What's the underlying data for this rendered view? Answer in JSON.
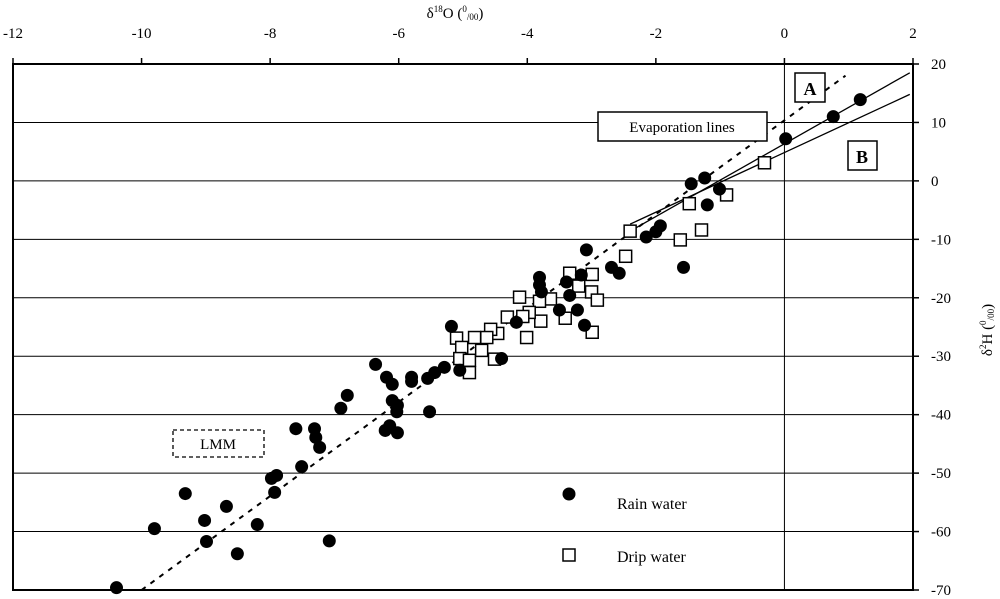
{
  "chart_data": {
    "type": "scatter",
    "title": "",
    "xlabel": "δ18O (‰)",
    "xlabel_parts": {
      "delta": "δ",
      "isotope": "18",
      "element": "O (",
      "permil_num": "0",
      "permil_den": "/00",
      "close": ")"
    },
    "ylabel": "δ2H (‰)",
    "ylabel_parts": {
      "delta": "δ",
      "isotope": "2",
      "element": "H (",
      "permil_num": "0",
      "permil_den": "/00",
      "close": ")"
    },
    "xlim": [
      -12,
      2
    ],
    "ylim": [
      -70,
      20
    ],
    "xticks": [
      -12,
      -10,
      -8,
      -6,
      -4,
      -2,
      0,
      2
    ],
    "yticks": [
      20,
      10,
      0,
      -10,
      -20,
      -30,
      -40,
      -50,
      -60,
      -70
    ],
    "x_axis_position": "top",
    "y_axis_position": "right",
    "grid": {
      "horizontal": true,
      "vertical_at": [
        0
      ]
    },
    "legend": {
      "placement": "bottom-right",
      "entries": [
        {
          "label": "Rain water",
          "marker": "filled-circle"
        },
        {
          "label": "Drip water",
          "marker": "open-square"
        }
      ]
    },
    "annotations": {
      "lmm": "LMM",
      "evaporation": "Evaporation lines",
      "line_a": "A",
      "line_b": "B"
    },
    "lines": [
      {
        "name": "LMM",
        "style": "dashed",
        "x": [
          -10.0,
          0.95
        ],
        "y": [
          -70,
          18
        ]
      },
      {
        "name": "Evaporation line A",
        "style": "solid",
        "x": [
          -2.4,
          1.95
        ],
        "y": [
          -8.6,
          18.5
        ]
      },
      {
        "name": "Evaporation line B",
        "style": "solid",
        "x": [
          -2.4,
          1.95
        ],
        "y": [
          -7.4,
          14.8
        ]
      }
    ],
    "series": [
      {
        "name": "Rain water",
        "points": [
          [
            -10.39,
            -69.6
          ],
          [
            -9.8,
            -59.5
          ],
          [
            -9.32,
            -53.5
          ],
          [
            -9.02,
            -58.1
          ],
          [
            -8.99,
            -61.7
          ],
          [
            -8.68,
            -55.7
          ],
          [
            -8.51,
            -63.8
          ],
          [
            -8.2,
            -58.8
          ],
          [
            -7.98,
            -50.9
          ],
          [
            -7.93,
            -53.3
          ],
          [
            -7.9,
            -50.4
          ],
          [
            -7.6,
            -42.4
          ],
          [
            -7.51,
            -48.9
          ],
          [
            -7.31,
            -42.4
          ],
          [
            -7.29,
            -43.9
          ],
          [
            -7.23,
            -45.6
          ],
          [
            -7.08,
            -61.6
          ],
          [
            -6.9,
            -38.9
          ],
          [
            -6.8,
            -36.7
          ],
          [
            -6.36,
            -31.4
          ],
          [
            -6.19,
            -33.6
          ],
          [
            -6.21,
            -42.7
          ],
          [
            -6.14,
            -41.9
          ],
          [
            -6.1,
            -34.8
          ],
          [
            -6.1,
            -37.6
          ],
          [
            -6.03,
            -39.5
          ],
          [
            -6.02,
            -43.1
          ],
          [
            -6.02,
            -38.4
          ],
          [
            -5.8,
            -33.6
          ],
          [
            -5.8,
            -34.3
          ],
          [
            -5.55,
            -33.8
          ],
          [
            -5.52,
            -39.5
          ],
          [
            -5.44,
            -32.8
          ],
          [
            -5.29,
            -31.9
          ],
          [
            -5.18,
            -24.9
          ],
          [
            -5.05,
            -32.4
          ],
          [
            -4.4,
            -30.4
          ],
          [
            -4.17,
            -24.2
          ],
          [
            -3.81,
            -16.5
          ],
          [
            -3.81,
            -17.8
          ],
          [
            -3.78,
            -19.0
          ],
          [
            -3.08,
            -11.8
          ],
          [
            -2.57,
            -15.8
          ],
          [
            -2.69,
            -14.8
          ],
          [
            -3.39,
            -17.3
          ],
          [
            -3.34,
            -19.6
          ],
          [
            -3.5,
            -22.1
          ],
          [
            -3.22,
            -22.1
          ],
          [
            -3.11,
            -24.7
          ],
          [
            -3.16,
            -16.1
          ],
          [
            -2.15,
            -9.6
          ],
          [
            -2.0,
            -8.7
          ],
          [
            -1.93,
            -7.7
          ],
          [
            -1.45,
            -0.5
          ],
          [
            -1.24,
            0.5
          ],
          [
            -1.01,
            -1.4
          ],
          [
            -1.2,
            -4.1
          ],
          [
            -1.57,
            -14.8
          ],
          [
            0.02,
            7.2
          ],
          [
            0.76,
            11.0
          ],
          [
            1.18,
            13.9
          ]
        ]
      },
      {
        "name": "Drip water",
        "points": [
          [
            -0.31,
            3.1
          ],
          [
            -0.9,
            -2.4
          ],
          [
            -1.29,
            -8.4
          ],
          [
            -1.48,
            -3.9
          ],
          [
            -1.62,
            -10.1
          ],
          [
            -2.4,
            -8.6
          ],
          [
            -2.47,
            -12.9
          ],
          [
            -3.34,
            -15.8
          ],
          [
            -2.99,
            -16.0
          ],
          [
            -3.2,
            -18.0
          ],
          [
            -3.0,
            -19.0
          ],
          [
            -2.91,
            -20.4
          ],
          [
            -2.99,
            -25.9
          ],
          [
            -3.41,
            -23.5
          ],
          [
            -3.64,
            -20.2
          ],
          [
            -3.81,
            -20.6
          ],
          [
            -3.79,
            -24.0
          ],
          [
            -3.97,
            -22.5
          ],
          [
            -4.12,
            -19.9
          ],
          [
            -4.07,
            -23.2
          ],
          [
            -4.01,
            -26.8
          ],
          [
            -4.31,
            -23.3
          ],
          [
            -4.46,
            -26.1
          ],
          [
            -4.57,
            -25.4
          ],
          [
            -4.63,
            -26.8
          ],
          [
            -4.82,
            -26.8
          ],
          [
            -5.1,
            -26.9
          ],
          [
            -5.02,
            -28.5
          ],
          [
            -5.05,
            -30.4
          ],
          [
            -4.9,
            -30.7
          ],
          [
            -4.9,
            -32.8
          ],
          [
            -4.51,
            -30.5
          ],
          [
            -4.71,
            -29.0
          ]
        ]
      }
    ]
  }
}
